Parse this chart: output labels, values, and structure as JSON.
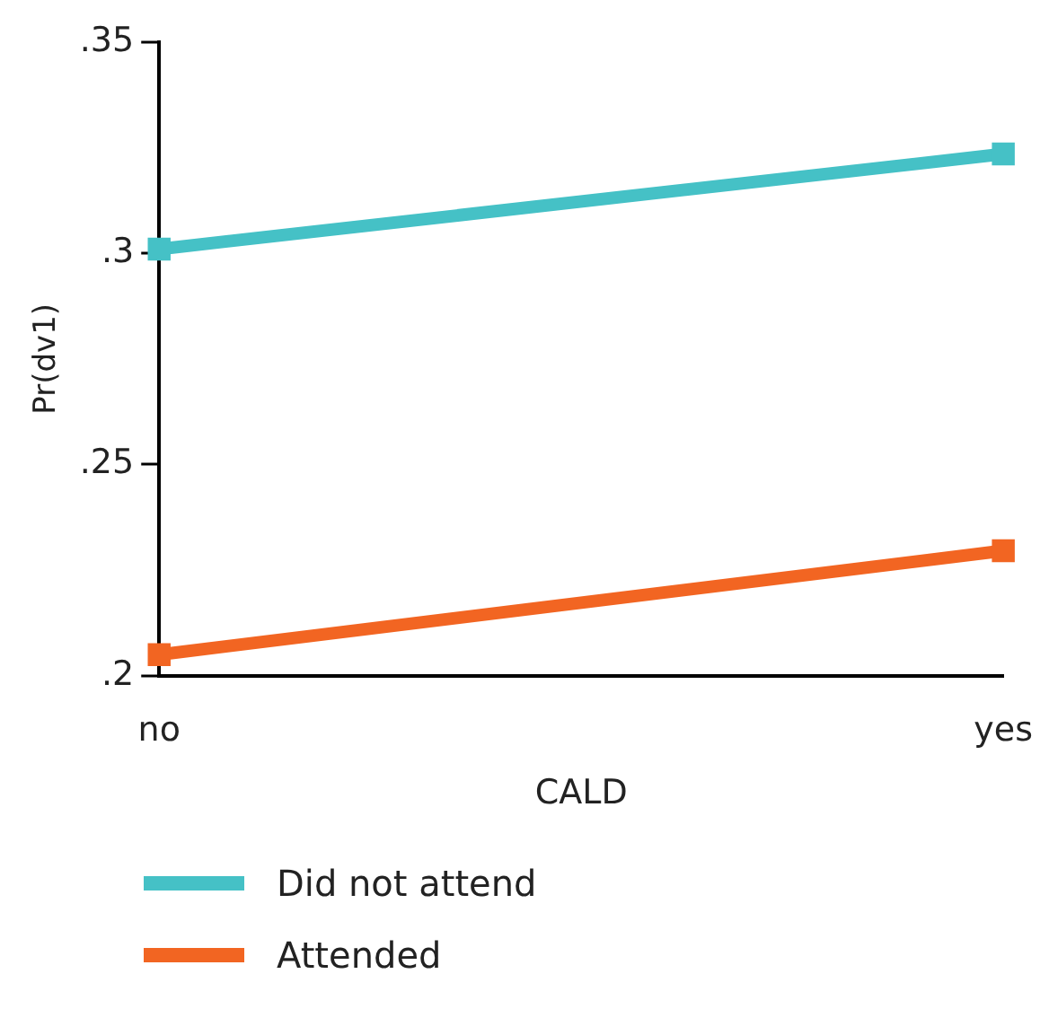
{
  "chart_data": {
    "type": "line",
    "xlabel": "CALD",
    "ylabel": "Pr(dv1)",
    "categories": [
      "no",
      "yes"
    ],
    "series": [
      {
        "name": "Did not attend",
        "color": "#45c1c6",
        "values": [
          0.301,
          0.3235
        ]
      },
      {
        "name": "Attended",
        "color": "#f26522",
        "values": [
          0.205,
          0.2296
        ]
      }
    ],
    "ylim": [
      0.2,
      0.35
    ],
    "yticks": [
      {
        "value": 0.2,
        "label": ".2"
      },
      {
        "value": 0.25,
        "label": ".25"
      },
      {
        "value": 0.3,
        "label": ".3"
      },
      {
        "value": 0.35,
        "label": ".35"
      }
    ],
    "grid": false,
    "legend": "bottom",
    "marker": "square",
    "line_style": "solid"
  }
}
